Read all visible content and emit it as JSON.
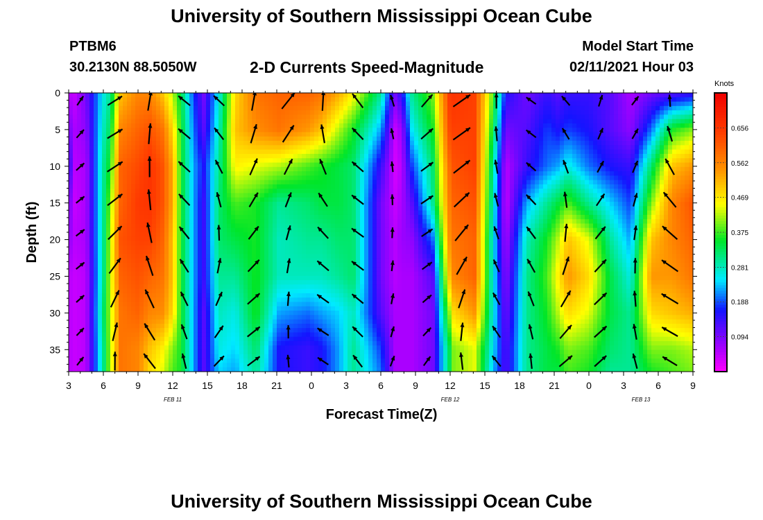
{
  "header": {
    "title": "University of Southern Mississippi Ocean Cube",
    "station": "PTBM6",
    "location": "30.2130N 88.5050W",
    "subtitle": "2-D Currents Speed-Magnitude",
    "model_label": "Model Start Time",
    "model_time": "02/11/2021 Hour 03"
  },
  "footer": {
    "title": "University of Southern Mississippi Ocean Cube"
  },
  "chart_data": {
    "type": "heatmap",
    "title": "2-D Currents Speed-Magnitude",
    "xlabel": "Forecast Time(Z)",
    "ylabel": "Depth (ft)",
    "x_range_hours": [
      0,
      54
    ],
    "xticks": [
      {
        "h": 0,
        "label": "3"
      },
      {
        "h": 3,
        "label": "6"
      },
      {
        "h": 6,
        "label": "9"
      },
      {
        "h": 9,
        "label": "12"
      },
      {
        "h": 12,
        "label": "15"
      },
      {
        "h": 15,
        "label": "18"
      },
      {
        "h": 18,
        "label": "21"
      },
      {
        "h": 21,
        "label": "0"
      },
      {
        "h": 24,
        "label": "3"
      },
      {
        "h": 27,
        "label": "6"
      },
      {
        "h": 30,
        "label": "9"
      },
      {
        "h": 33,
        "label": "12"
      },
      {
        "h": 36,
        "label": "15"
      },
      {
        "h": 39,
        "label": "18"
      },
      {
        "h": 42,
        "label": "21"
      },
      {
        "h": 45,
        "label": "0"
      },
      {
        "h": 48,
        "label": "3"
      },
      {
        "h": 51,
        "label": "6"
      },
      {
        "h": 54,
        "label": "9"
      }
    ],
    "date_labels": [
      {
        "h": 9,
        "label": "FEB 11"
      },
      {
        "h": 33,
        "label": "FEB 12"
      },
      {
        "h": 49.5,
        "label": "FEB 13"
      }
    ],
    "y_range_ft": [
      0,
      38
    ],
    "yticks": [
      0,
      5,
      10,
      15,
      20,
      25,
      30,
      35
    ],
    "colorbar": {
      "label": "Knots",
      "range": [
        0,
        0.75
      ],
      "ticks": [
        "0.656",
        "0.562",
        "0.469",
        "0.375",
        "0.281",
        "0.188",
        "0.094"
      ],
      "tick_values": [
        0.656,
        0.562,
        0.469,
        0.375,
        0.281,
        0.188,
        0.094
      ]
    },
    "speed_knots": {
      "hours": [
        0,
        0.5,
        1.5,
        3,
        3.6,
        4.5,
        6,
        7,
        8.1,
        9,
        9.7,
        10.8,
        11.7,
        13,
        14.4,
        16.2,
        18.2,
        20.7,
        21.9,
        23.4,
        24.6,
        27,
        28.2,
        28.8,
        29.7,
        31.5,
        33,
        33.3,
        35.1,
        36.6,
        37.8,
        39.6,
        41.4,
        42.3,
        43.2,
        45,
        46.8,
        48.6,
        50.4,
        52.2,
        54
      ],
      "depths_ft": [
        0,
        5,
        10,
        15,
        20,
        25,
        30,
        35,
        38
      ],
      "values": [
        [
          0.05,
          0.1,
          0.16,
          0.1,
          0.08,
          0.05,
          0.05,
          0.05,
          0.05
        ],
        [
          0.04,
          0.06,
          0.05,
          0.04,
          0.05,
          0.04,
          0.04,
          0.04,
          0.04
        ],
        [
          0.1,
          0.08,
          0.06,
          0.06,
          0.06,
          0.05,
          0.05,
          0.05,
          0.05
        ],
        [
          0.26,
          0.28,
          0.3,
          0.3,
          0.3,
          0.3,
          0.32,
          0.3,
          0.3
        ],
        [
          0.3,
          0.33,
          0.36,
          0.4,
          0.42,
          0.43,
          0.42,
          0.42,
          0.42
        ],
        [
          0.5,
          0.56,
          0.6,
          0.6,
          0.62,
          0.6,
          0.58,
          0.58,
          0.58
        ],
        [
          0.56,
          0.6,
          0.63,
          0.65,
          0.64,
          0.62,
          0.6,
          0.56,
          0.56
        ],
        [
          0.56,
          0.62,
          0.66,
          0.66,
          0.64,
          0.6,
          0.56,
          0.5,
          0.48
        ],
        [
          0.5,
          0.58,
          0.62,
          0.62,
          0.6,
          0.58,
          0.55,
          0.46,
          0.44
        ],
        [
          0.42,
          0.48,
          0.52,
          0.52,
          0.5,
          0.5,
          0.48,
          0.4,
          0.38
        ],
        [
          0.34,
          0.36,
          0.36,
          0.36,
          0.36,
          0.36,
          0.36,
          0.36,
          0.36
        ],
        [
          0.18,
          0.2,
          0.22,
          0.22,
          0.22,
          0.22,
          0.22,
          0.22,
          0.22
        ],
        [
          0.1,
          0.12,
          0.16,
          0.14,
          0.14,
          0.14,
          0.12,
          0.12,
          0.12
        ],
        [
          0.26,
          0.28,
          0.3,
          0.32,
          0.32,
          0.3,
          0.28,
          0.26,
          0.24
        ],
        [
          0.48,
          0.5,
          0.46,
          0.38,
          0.34,
          0.3,
          0.26,
          0.24,
          0.22
        ],
        [
          0.58,
          0.55,
          0.44,
          0.36,
          0.36,
          0.36,
          0.36,
          0.32,
          0.3
        ],
        [
          0.6,
          0.58,
          0.42,
          0.3,
          0.28,
          0.28,
          0.22,
          0.16,
          0.16
        ],
        [
          0.6,
          0.54,
          0.38,
          0.32,
          0.3,
          0.28,
          0.2,
          0.14,
          0.14
        ],
        [
          0.58,
          0.5,
          0.36,
          0.34,
          0.3,
          0.28,
          0.22,
          0.16,
          0.16
        ],
        [
          0.52,
          0.42,
          0.34,
          0.34,
          0.32,
          0.3,
          0.24,
          0.22,
          0.22
        ],
        [
          0.46,
          0.36,
          0.32,
          0.32,
          0.32,
          0.32,
          0.28,
          0.3,
          0.3
        ],
        [
          0.3,
          0.22,
          0.14,
          0.1,
          0.1,
          0.1,
          0.12,
          0.18,
          0.2
        ],
        [
          0.1,
          0.04,
          0.03,
          0.04,
          0.05,
          0.05,
          0.06,
          0.06,
          0.06
        ],
        [
          0.15,
          0.07,
          0.05,
          0.06,
          0.07,
          0.06,
          0.06,
          0.06,
          0.06
        ],
        [
          0.3,
          0.25,
          0.18,
          0.12,
          0.08,
          0.06,
          0.06,
          0.06,
          0.06
        ],
        [
          0.4,
          0.36,
          0.32,
          0.3,
          0.2,
          0.12,
          0.1,
          0.1,
          0.1
        ],
        [
          0.66,
          0.64,
          0.6,
          0.58,
          0.56,
          0.52,
          0.42,
          0.34,
          0.34
        ],
        [
          0.66,
          0.64,
          0.62,
          0.6,
          0.58,
          0.56,
          0.48,
          0.4,
          0.4
        ],
        [
          0.64,
          0.64,
          0.64,
          0.62,
          0.6,
          0.6,
          0.54,
          0.44,
          0.44
        ],
        [
          0.4,
          0.36,
          0.32,
          0.3,
          0.28,
          0.28,
          0.28,
          0.26,
          0.24
        ],
        [
          0.16,
          0.1,
          0.05,
          0.04,
          0.06,
          0.08,
          0.1,
          0.12,
          0.12
        ],
        [
          0.1,
          0.12,
          0.14,
          0.22,
          0.28,
          0.3,
          0.3,
          0.3,
          0.3
        ],
        [
          0.14,
          0.18,
          0.2,
          0.3,
          0.36,
          0.38,
          0.36,
          0.34,
          0.34
        ],
        [
          0.12,
          0.16,
          0.22,
          0.34,
          0.42,
          0.46,
          0.42,
          0.36,
          0.34
        ],
        [
          0.14,
          0.18,
          0.26,
          0.38,
          0.5,
          0.54,
          0.48,
          0.4,
          0.38
        ],
        [
          0.14,
          0.16,
          0.2,
          0.3,
          0.44,
          0.48,
          0.44,
          0.38,
          0.36
        ],
        [
          0.12,
          0.12,
          0.16,
          0.24,
          0.3,
          0.34,
          0.34,
          0.32,
          0.3
        ],
        [
          0.06,
          0.08,
          0.14,
          0.18,
          0.22,
          0.26,
          0.3,
          0.3,
          0.3
        ],
        [
          0.1,
          0.2,
          0.32,
          0.4,
          0.5,
          0.54,
          0.48,
          0.4,
          0.36
        ],
        [
          0.12,
          0.36,
          0.5,
          0.56,
          0.56,
          0.54,
          0.5,
          0.4,
          0.38
        ],
        [
          0.14,
          0.4,
          0.54,
          0.62,
          0.6,
          0.58,
          0.52,
          0.42,
          0.4
        ]
      ]
    }
  }
}
